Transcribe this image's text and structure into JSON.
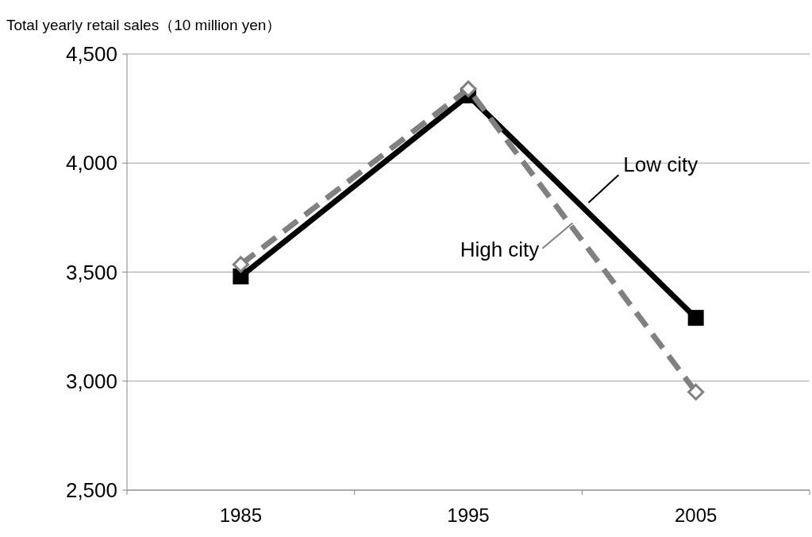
{
  "chart_data": {
    "type": "line",
    "ylabel": "Total yearly retail sales（10 million yen）",
    "categories": [
      "1985",
      "1995",
      "2005"
    ],
    "series": [
      {
        "name": "Low city",
        "color": "#000000",
        "values": [
          3480,
          4310,
          3290
        ],
        "marker": "square",
        "line_style": "solid"
      },
      {
        "name": "High city",
        "color": "#808080",
        "values": [
          3535,
          4340,
          2950
        ],
        "marker": "diamond",
        "line_style": "dashed"
      }
    ],
    "ylim": [
      2500,
      4500
    ],
    "yticks": [
      {
        "value": 2500,
        "label": "2,500"
      },
      {
        "value": 3000,
        "label": "3,000"
      },
      {
        "value": 3500,
        "label": "3,500"
      },
      {
        "value": 4000,
        "label": "4,000"
      },
      {
        "value": 4500,
        "label": "4,500"
      }
    ],
    "grid": "y"
  }
}
